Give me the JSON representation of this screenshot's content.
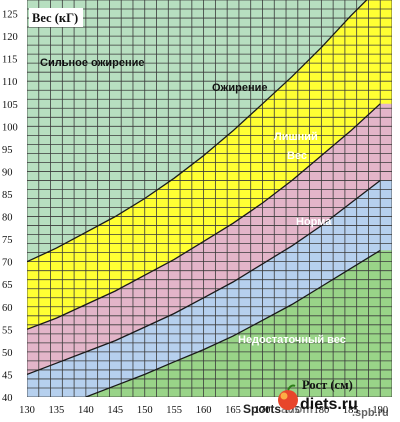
{
  "chart_data": {
    "type": "area",
    "xlabel": "Рост (см)",
    "ylabel": "Вес (кГ)",
    "x_ticks": [
      130,
      135,
      140,
      145,
      150,
      155,
      160,
      165,
      170,
      175,
      180,
      185,
      190
    ],
    "y_ticks": [
      40,
      45,
      50,
      55,
      60,
      65,
      70,
      75,
      80,
      85,
      90,
      95,
      100,
      105,
      110,
      115,
      120,
      125
    ],
    "xlim": [
      130,
      192
    ],
    "ylim": [
      40,
      128
    ],
    "grid": true,
    "x_tick_step": 2,
    "y_tick_step": 2,
    "boundaries": [
      {
        "between": [
          "Недостаточный вес",
          "Норма"
        ],
        "x": [
          140,
          145,
          150,
          155,
          160,
          165,
          170,
          175,
          180,
          185,
          190
        ],
        "y": [
          40,
          42.5,
          45,
          47.8,
          50.5,
          53.5,
          57,
          60.5,
          64.5,
          68.5,
          72.5
        ]
      },
      {
        "between": [
          "Норма",
          "Лишний Вес"
        ],
        "x": [
          130,
          135,
          140,
          145,
          150,
          155,
          160,
          165,
          170,
          175,
          180,
          185,
          190
        ],
        "y": [
          45,
          47.5,
          50,
          52.5,
          55.5,
          58.5,
          62,
          65.5,
          69.5,
          73.5,
          78,
          83,
          88
        ]
      },
      {
        "between": [
          "Лишний Вес",
          "Ожирение"
        ],
        "x": [
          130,
          135,
          140,
          145,
          150,
          155,
          160,
          165,
          170,
          175,
          180,
          185,
          190
        ],
        "y": [
          55,
          57.5,
          60.5,
          63.5,
          67,
          70.5,
          74.5,
          78.5,
          83,
          88,
          93.5,
          99,
          105
        ]
      },
      {
        "between": [
          "Ожирение",
          "Сильное ожирение"
        ],
        "x": [
          130,
          135,
          140,
          145,
          150,
          155,
          160,
          165,
          170,
          175,
          180,
          185,
          190
        ],
        "y": [
          70,
          73,
          76.5,
          80,
          84,
          88.5,
          93.5,
          99,
          105,
          111,
          117.5,
          124.5,
          131
        ]
      }
    ],
    "zones": [
      {
        "name": "Сильное ожирение",
        "color": "#b7dfc0",
        "text_color": "#111111"
      },
      {
        "name": "Ожирение",
        "color": "#ffff33",
        "text_color": "#111111"
      },
      {
        "name": "Лишний Вес",
        "color": "#e3b5c9",
        "text_color": "#ffffff"
      },
      {
        "name": "Норма",
        "color": "#b6d0ee",
        "text_color": "#ffffff"
      },
      {
        "name": "Недостаточный вес",
        "color": "#99d488",
        "text_color": "#ffffff"
      }
    ],
    "grid_color": "#3a3a3a",
    "boundary_color": "#1a1a1a"
  },
  "labels": {
    "zone_obesity_severe": "Сильное ожирение",
    "zone_obesity": "Ожирение",
    "zone_overweight_1": "Лишний",
    "zone_overweight_2": "Вес",
    "zone_normal": "Норма",
    "zone_underweight": "Недостаточный вес",
    "y_axis_title": "Вес (кГ)",
    "x_axis_title": "Рост (см)"
  },
  "watermark": {
    "left_text": "Sports",
    "right_text": "diets.ru",
    "domain_partial": ".spb.ru",
    "site_fragment": "adom"
  }
}
